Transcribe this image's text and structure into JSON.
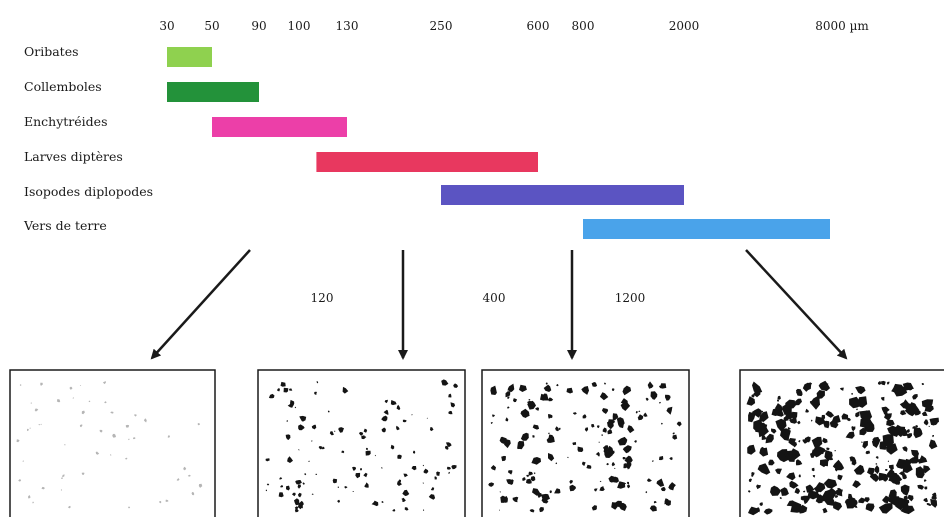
{
  "scale": {
    "ticks": [
      {
        "label": "30",
        "value": 30
      },
      {
        "label": "50",
        "value": 50
      },
      {
        "label": "90",
        "value": 90
      },
      {
        "label": "100",
        "value": 100
      },
      {
        "label": "130",
        "value": 130
      },
      {
        "label": "250",
        "value": 250
      },
      {
        "label": "600",
        "value": 600
      },
      {
        "label": "800",
        "value": 800
      },
      {
        "label": "2000",
        "value": 2000
      },
      {
        "label": "8000 µm",
        "value": 8000
      }
    ]
  },
  "organisms": [
    {
      "name": "Oribates",
      "min": 30,
      "max": 50,
      "color": "#8fd14f"
    },
    {
      "name": "Collemboles",
      "min": 30,
      "max": 90,
      "color": "#23923a"
    },
    {
      "name": "Enchytréides",
      "min": 50,
      "max": 130,
      "color": "#ec3fa8"
    },
    {
      "name": "Larves diptères",
      "min": 110,
      "max": 600,
      "color": "#e8385f"
    },
    {
      "name": "Isopodes diplopodes",
      "min": 250,
      "max": 2000,
      "color": "#5b54c2"
    },
    {
      "name": "Vers de terre",
      "min": 800,
      "max": 8000,
      "color": "#4aa3ea"
    }
  ],
  "mid_labels": [
    "120",
    "400",
    "1200"
  ],
  "panels": [
    {
      "name": "panel-sparse",
      "density": 0.12
    },
    {
      "name": "panel-low",
      "density": 0.35
    },
    {
      "name": "panel-medium",
      "density": 0.55
    },
    {
      "name": "panel-dense",
      "density": 0.9
    }
  ]
}
